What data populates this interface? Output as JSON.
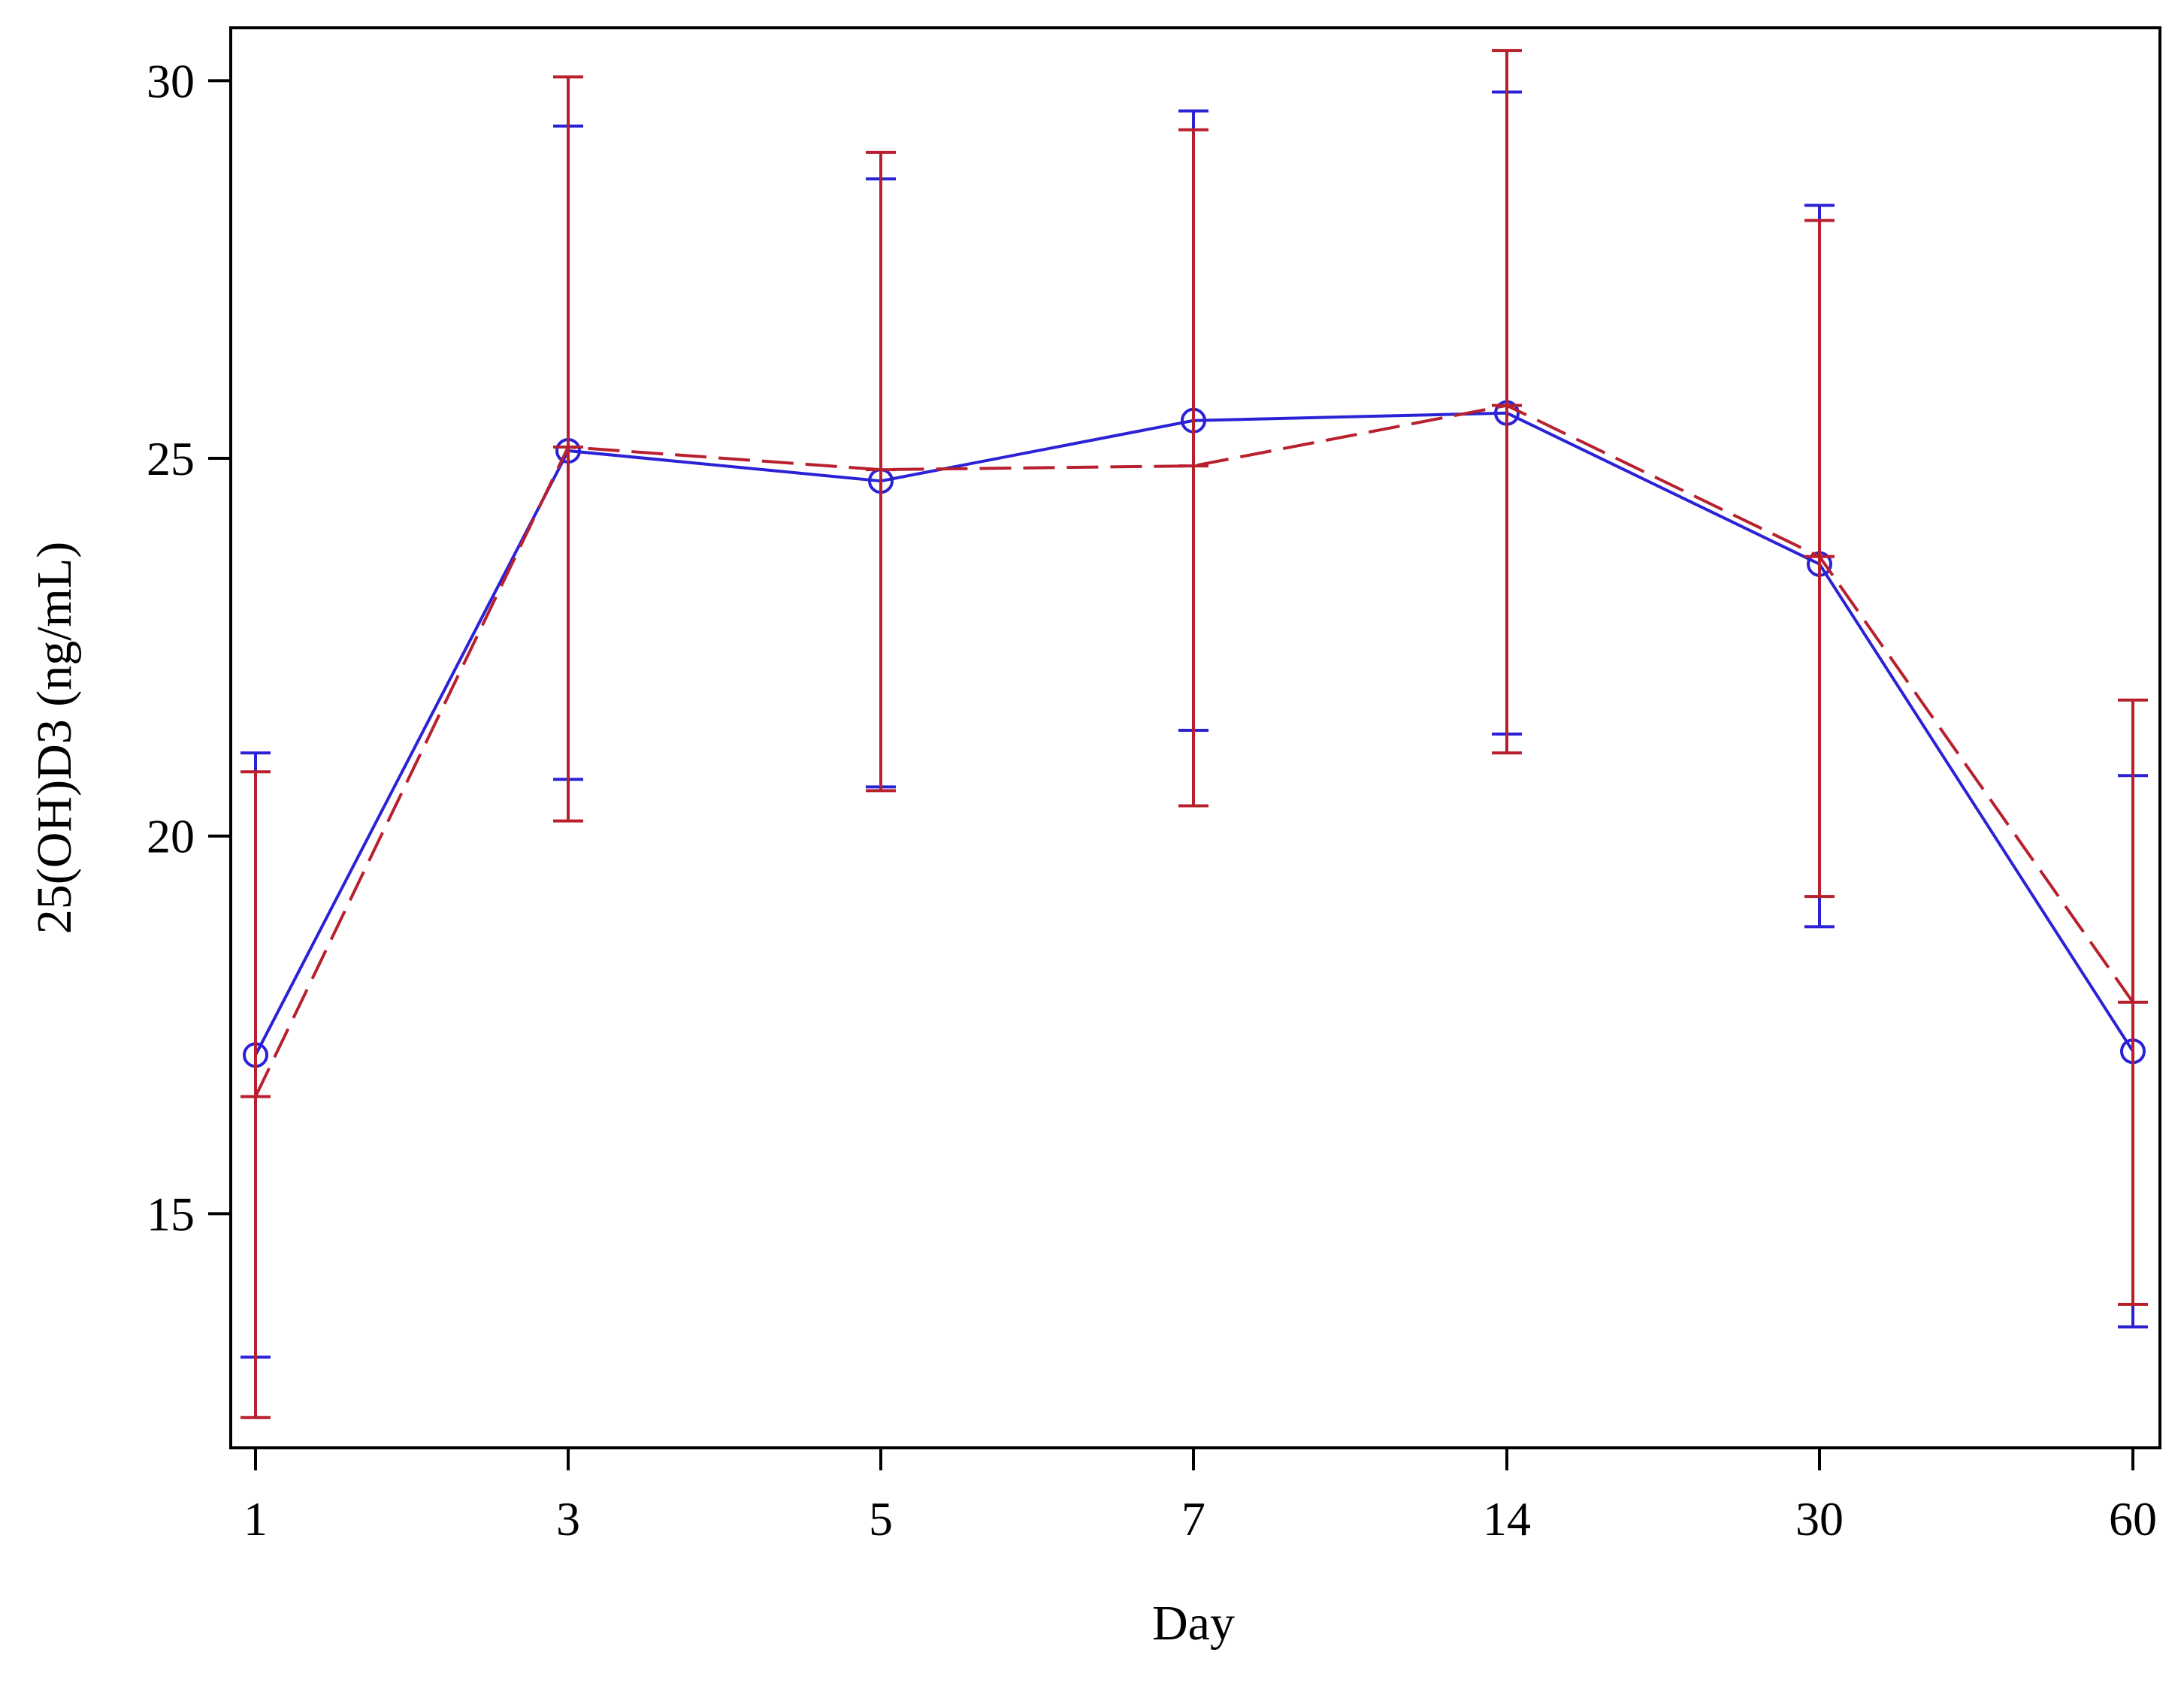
{
  "chart_data": {
    "type": "line",
    "title": "",
    "xlabel": "Day",
    "ylabel": "25(OH)D3 (ng/mL)",
    "categories": [
      "1",
      "3",
      "5",
      "7",
      "14",
      "30",
      "60"
    ],
    "ylim": [
      11.9,
      30.7
    ],
    "yticks": [
      15,
      20,
      25,
      30
    ],
    "ytick_labels": [
      "15",
      "20",
      "25",
      "30"
    ],
    "grid": false,
    "legend": "none",
    "series": [
      {
        "color": "#2b22d6",
        "line_style": "solid",
        "marker": "circle",
        "values": [
          17.1,
          25.1,
          24.7,
          25.5,
          25.6,
          23.6,
          17.15
        ],
        "upper": [
          21.1,
          29.4,
          28.7,
          29.6,
          29.85,
          28.35,
          20.8
        ],
        "lower": [
          13.1,
          20.75,
          20.65,
          21.4,
          21.35,
          18.8,
          13.5
        ]
      },
      {
        "color": "#b8202e",
        "line_style": "dashed",
        "marker": "none",
        "values": [
          16.55,
          25.15,
          24.85,
          24.9,
          25.7,
          23.7,
          17.8
        ],
        "upper": [
          20.85,
          30.05,
          29.05,
          29.35,
          30.4,
          28.15,
          21.8
        ],
        "lower": [
          12.3,
          20.2,
          20.6,
          20.4,
          21.1,
          19.2,
          13.8
        ]
      }
    ]
  }
}
